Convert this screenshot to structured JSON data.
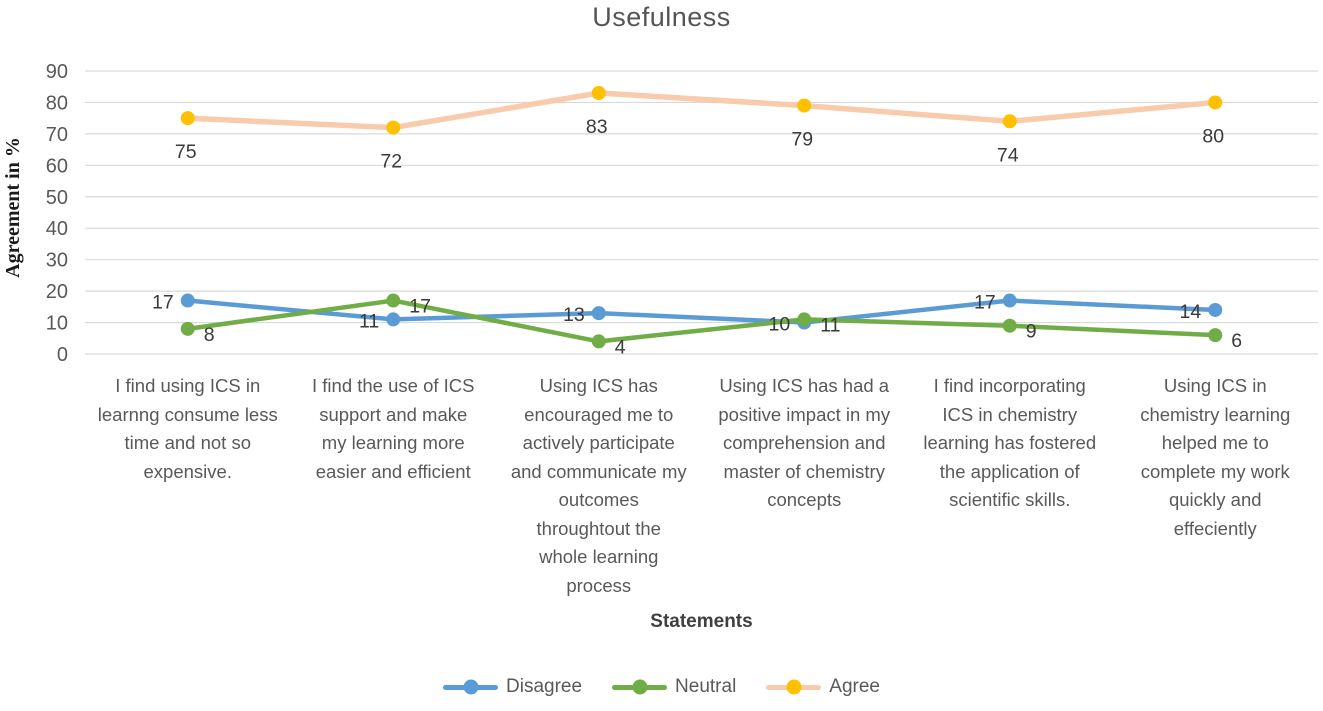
{
  "chart_data": {
    "type": "line",
    "title": "Usefulness",
    "xlabel": "Statements",
    "ylabel": "Agreement in %",
    "ylim": [
      0,
      90
    ],
    "yticks": [
      0,
      10,
      20,
      30,
      40,
      50,
      60,
      70,
      80,
      90
    ],
    "grid": true,
    "legend_position": "bottom",
    "categories": [
      "I find using ICS in\nlearnng consume less\ntime and not so\nexpensive.",
      "I find the use of ICS\nsupport and make\nmy learning more\neasier and efficient",
      "Using ICS has\nencouraged me to\nactively participate\nand communicate my\noutcomes\nthroughtout the\nwhole learning\nprocess",
      "Using ICS has had a\npositive impact in my\ncomprehension and\nmaster of chemistry\nconcepts",
      "I find incorporating\nICS in chemistry\nlearning has fostered\nthe application of\nscientific skills.",
      "Using ICS in\nchemistry learning\nhelped me to\ncomplete my work\nquickly and\neffeciently"
    ],
    "series": [
      {
        "name": "Disagree",
        "values": [
          17,
          11,
          13,
          10,
          17,
          14
        ],
        "line_color": "#5B9BD5",
        "marker_color": "#5B9BD5",
        "line_width": 4.5,
        "label_side": "left"
      },
      {
        "name": "Neutral",
        "values": [
          8,
          17,
          4,
          11,
          9,
          6
        ],
        "line_color": "#70AD47",
        "marker_color": "#70AD47",
        "line_width": 4.5,
        "label_side": "right"
      },
      {
        "name": "Agree",
        "values": [
          75,
          72,
          83,
          79,
          74,
          80
        ],
        "line_color": "#F8CBAD",
        "marker_color": "#FFC000",
        "line_width": 5.5,
        "label_side": "below"
      }
    ],
    "colors": {
      "grid": "#d9d9d9",
      "tick_text": "#595959",
      "data_label_text": "#3a3a3a",
      "title_text": "#555555",
      "axis_title_text": "#3f3f3f",
      "background": "#ffffff"
    }
  }
}
